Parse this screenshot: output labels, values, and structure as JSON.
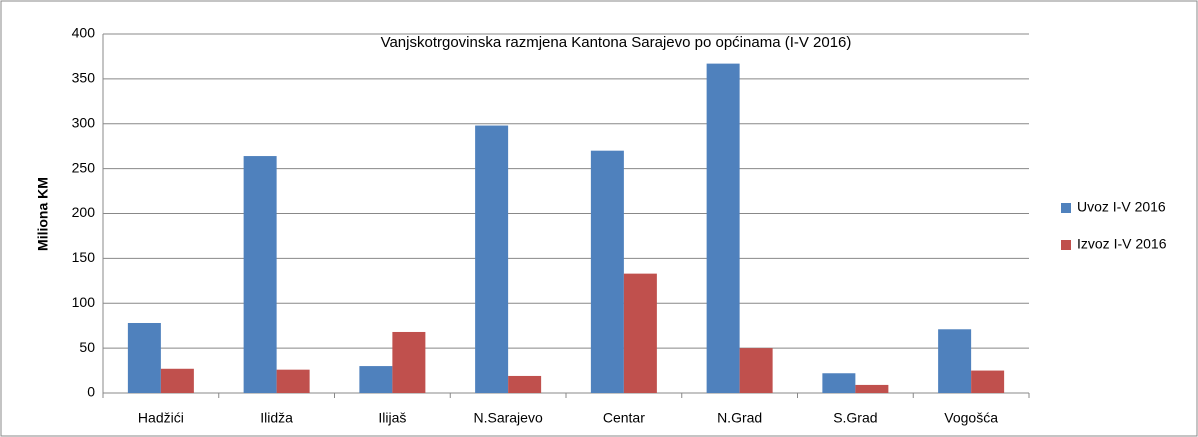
{
  "chart_data": {
    "type": "bar",
    "title": "Vanjskotrgovinska razmjena Kantona Sarajevo po općinama (I-V 2016)",
    "y_label": "Miliona KM",
    "categories": [
      "Hadžići",
      "Ilidža",
      "Ilijaš",
      "N.Sarajevo",
      "Centar",
      "N.Grad",
      "S.Grad",
      "Vogošća"
    ],
    "series": [
      {
        "name": "Uvoz I-V 2016",
        "color": "#4f81bd",
        "values": [
          78,
          264,
          30,
          298,
          270,
          367,
          22,
          71
        ]
      },
      {
        "name": "Izvoz I-V 2016",
        "color": "#c0504d",
        "values": [
          27,
          26,
          68,
          19,
          133,
          50,
          9,
          25
        ]
      }
    ],
    "ylim": [
      0,
      400
    ],
    "yticks": [
      0,
      50,
      100,
      150,
      200,
      250,
      300,
      350,
      400
    ],
    "grid": true,
    "legend": "right"
  }
}
